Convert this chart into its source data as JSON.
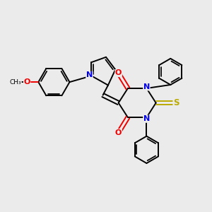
{
  "background_color": "#ebebeb",
  "bond_color": "#000000",
  "atom_colors": {
    "N": "#0000ee",
    "O": "#ee0000",
    "S": "#bbaa00",
    "C": "#000000"
  },
  "figsize": [
    3.0,
    3.0
  ],
  "dpi": 100,
  "lw": 1.4
}
